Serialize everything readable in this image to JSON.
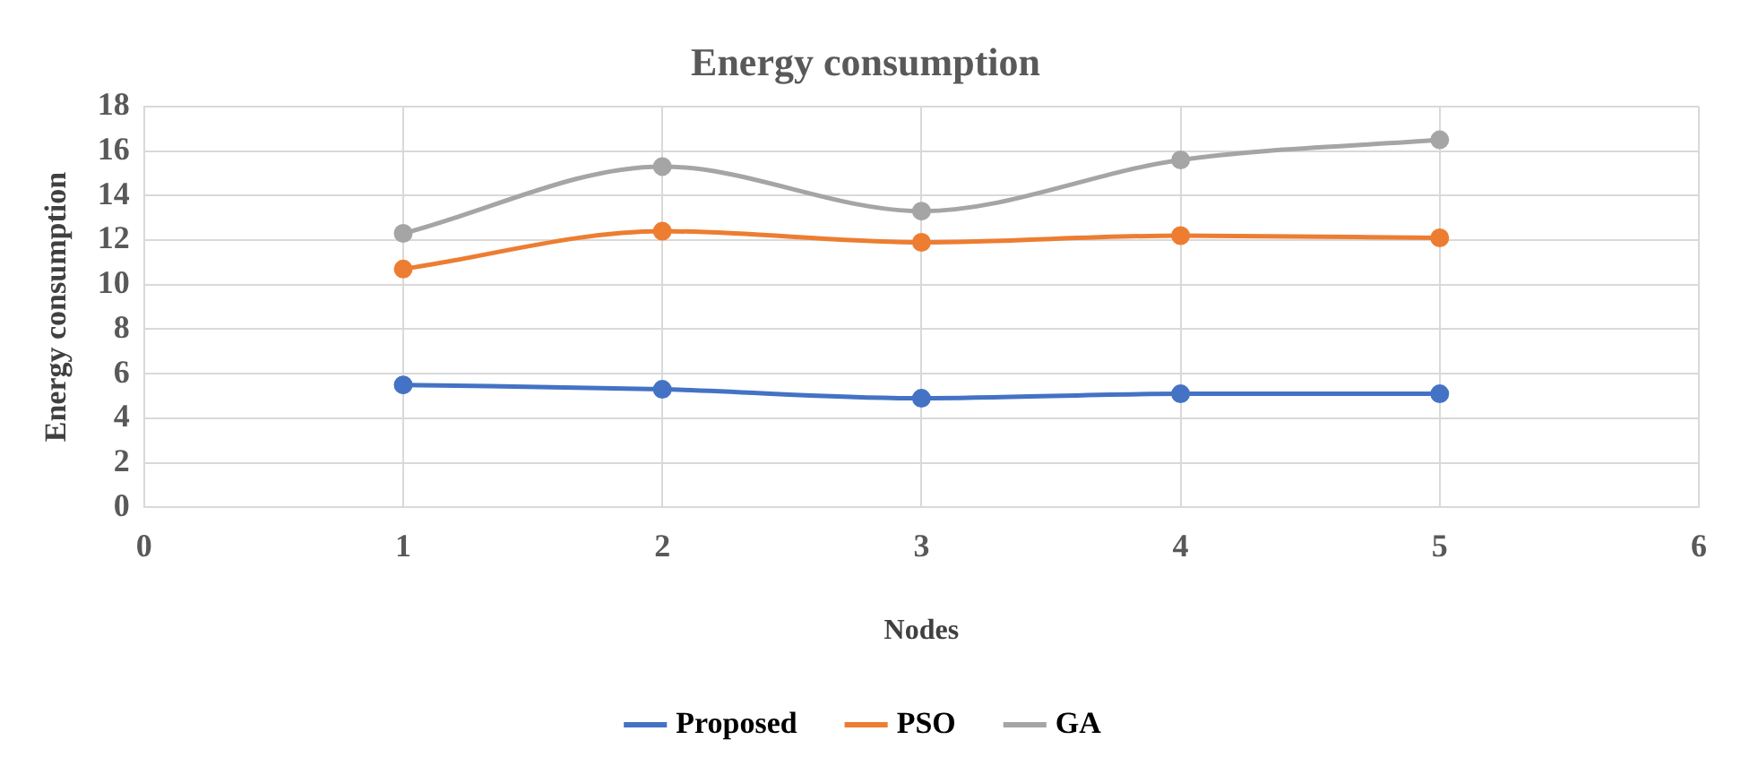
{
  "chart_data": {
    "type": "line",
    "title": "Energy consumption",
    "xlabel": "Nodes",
    "ylabel": "Energy consumption",
    "x": [
      1,
      2,
      3,
      4,
      5
    ],
    "series": [
      {
        "name": "Proposed",
        "color": "#4472c4",
        "values": [
          5.5,
          5.3,
          4.9,
          5.1,
          5.1
        ]
      },
      {
        "name": "PSO",
        "color": "#ed7d31",
        "values": [
          10.7,
          12.4,
          11.9,
          12.2,
          12.1
        ]
      },
      {
        "name": "GA",
        "color": "#a5a5a5",
        "values": [
          12.3,
          15.3,
          13.3,
          15.6,
          16.5
        ]
      }
    ],
    "xlim": [
      0,
      6
    ],
    "xticks": [
      0,
      1,
      2,
      3,
      4,
      5,
      6
    ],
    "ylim": [
      0,
      18
    ],
    "yticks": [
      0,
      2,
      4,
      6,
      8,
      10,
      12,
      14,
      16,
      18
    ],
    "grid": true,
    "legend": "bottom",
    "marker": "circle",
    "line_style": "solid"
  }
}
